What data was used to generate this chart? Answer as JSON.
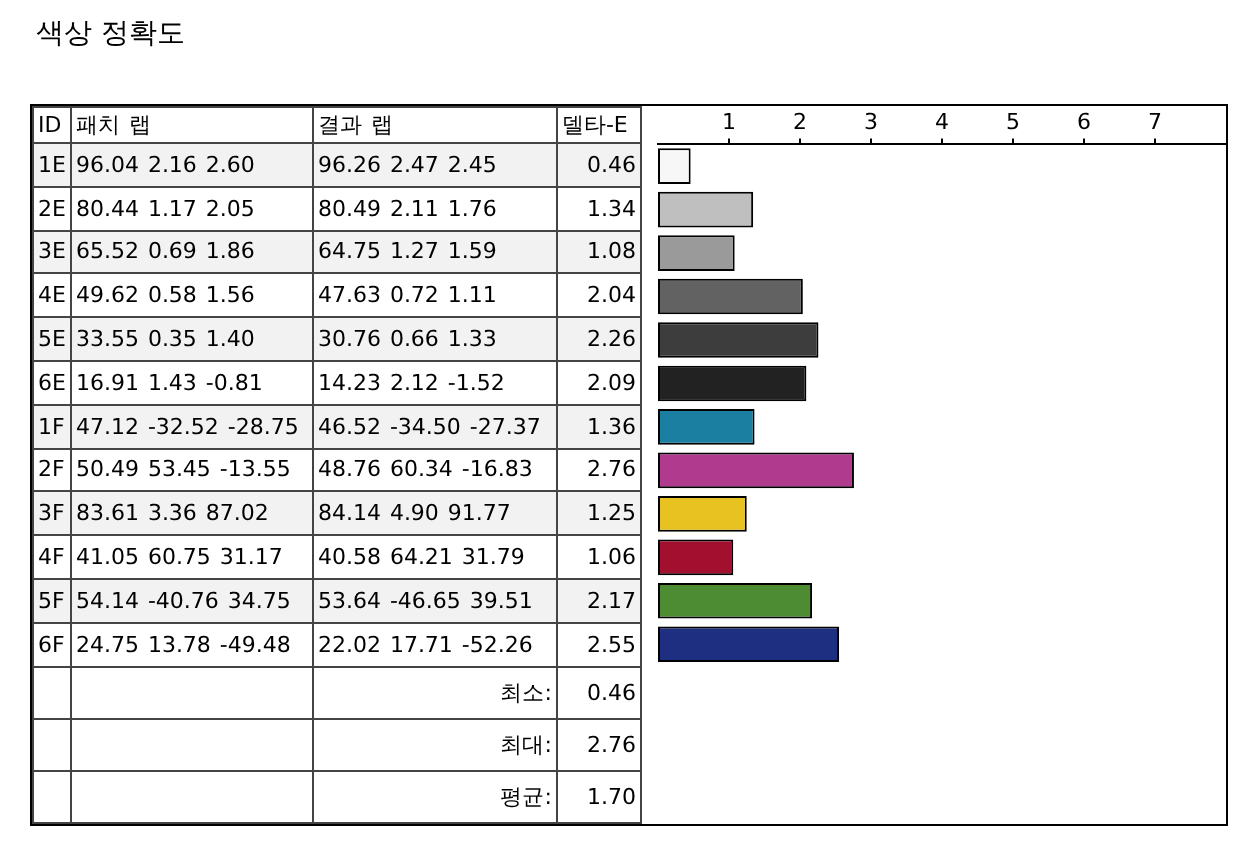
{
  "chart_data": {
    "type": "bar",
    "orientation": "horizontal",
    "title": "색상 정확도",
    "ylabel": "ID",
    "xlabel": "델타-E",
    "categories": [
      "1E",
      "2E",
      "3E",
      "4E",
      "5E",
      "6E",
      "1F",
      "2F",
      "3F",
      "4F",
      "5F",
      "6F"
    ],
    "values": [
      0.46,
      1.34,
      1.08,
      2.04,
      2.26,
      2.09,
      1.36,
      2.76,
      1.25,
      1.06,
      2.17,
      2.55
    ],
    "value_labels": [
      "0.46",
      "1.34",
      "1.08",
      "2.04",
      "2.26",
      "2.09",
      "1.36",
      "2.76",
      "1.25",
      "1.06",
      "2.17",
      "2.55"
    ],
    "colors": [
      "#f7f7f7",
      "#c0bfbf",
      "#9a9a9a",
      "#626262",
      "#3d3d3d",
      "#222222",
      "#1a7fa0",
      "#b03a8e",
      "#e8c220",
      "#a3102f",
      "#4e8c34",
      "#1e2e80"
    ],
    "x2lim": [
      0,
      8
    ],
    "x2ticks": [
      1,
      2,
      3,
      4,
      5,
      6,
      7
    ],
    "annotations": [
      "패치 랩",
      "결과 랩",
      "96.04 2.16 2.60",
      "96.26 2.47 2.45",
      "80.44 1.17 2.05",
      "80.49 2.11 1.76",
      "65.52 0.69 1.86",
      "64.75 1.27 1.59",
      "49.62 0.58 1.56",
      "47.63 0.72 1.11",
      "33.55 0.35 1.40",
      "30.76 0.66 1.33",
      "16.91 1.43 -0.81",
      "14.23 2.12 -1.52",
      "47.12 -32.52 -28.75",
      "46.52 -34.50 -27.37",
      "50.49 53.45 -13.55",
      "48.76 60.34 -16.83",
      "83.61 3.36 87.02",
      "84.14 4.90 91.77",
      "41.05 60.75 31.17",
      "40.58 64.21 31.79",
      "54.14 -40.76 34.75",
      "53.64 -46.65 39.51",
      "24.75 13.78 -49.48",
      "22.02 17.71 -52.26",
      "최소:",
      "0.46",
      "최대:",
      "2.76",
      "평균:",
      "1.70"
    ]
  }
}
